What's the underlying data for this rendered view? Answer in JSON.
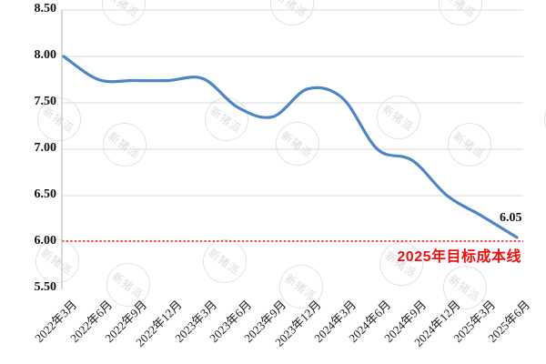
{
  "watermark": {
    "text": "新猪派"
  },
  "chart_data": {
    "type": "line",
    "title": "",
    "categories": [
      "2022年3月",
      "2022年6月",
      "2022年9月",
      "2022年12月",
      "2023年3月",
      "2023年6月",
      "2023年9月",
      "2023年12月",
      "2024年3月",
      "2024年6月",
      "2024年9月",
      "2024年12月",
      "2025年3月",
      "2025年6月"
    ],
    "values": [
      8.0,
      7.75,
      7.74,
      7.74,
      7.76,
      7.45,
      7.35,
      7.65,
      7.55,
      7.0,
      6.88,
      6.5,
      6.28,
      6.05
    ],
    "y_ticks": [
      "8.50",
      "8.00",
      "7.50",
      "7.00",
      "6.50",
      "6.00",
      "5.50"
    ],
    "ylim": [
      5.5,
      8.5
    ],
    "grid": true,
    "legend": "none",
    "line_color": "#4e85c5",
    "grid_color": "#d9d9d9",
    "axis_color": "#c2c2c2",
    "end_label": "6.05",
    "target_line": {
      "value": 6.0,
      "label": "2025年目标成本线",
      "color": "#ee1111"
    }
  }
}
